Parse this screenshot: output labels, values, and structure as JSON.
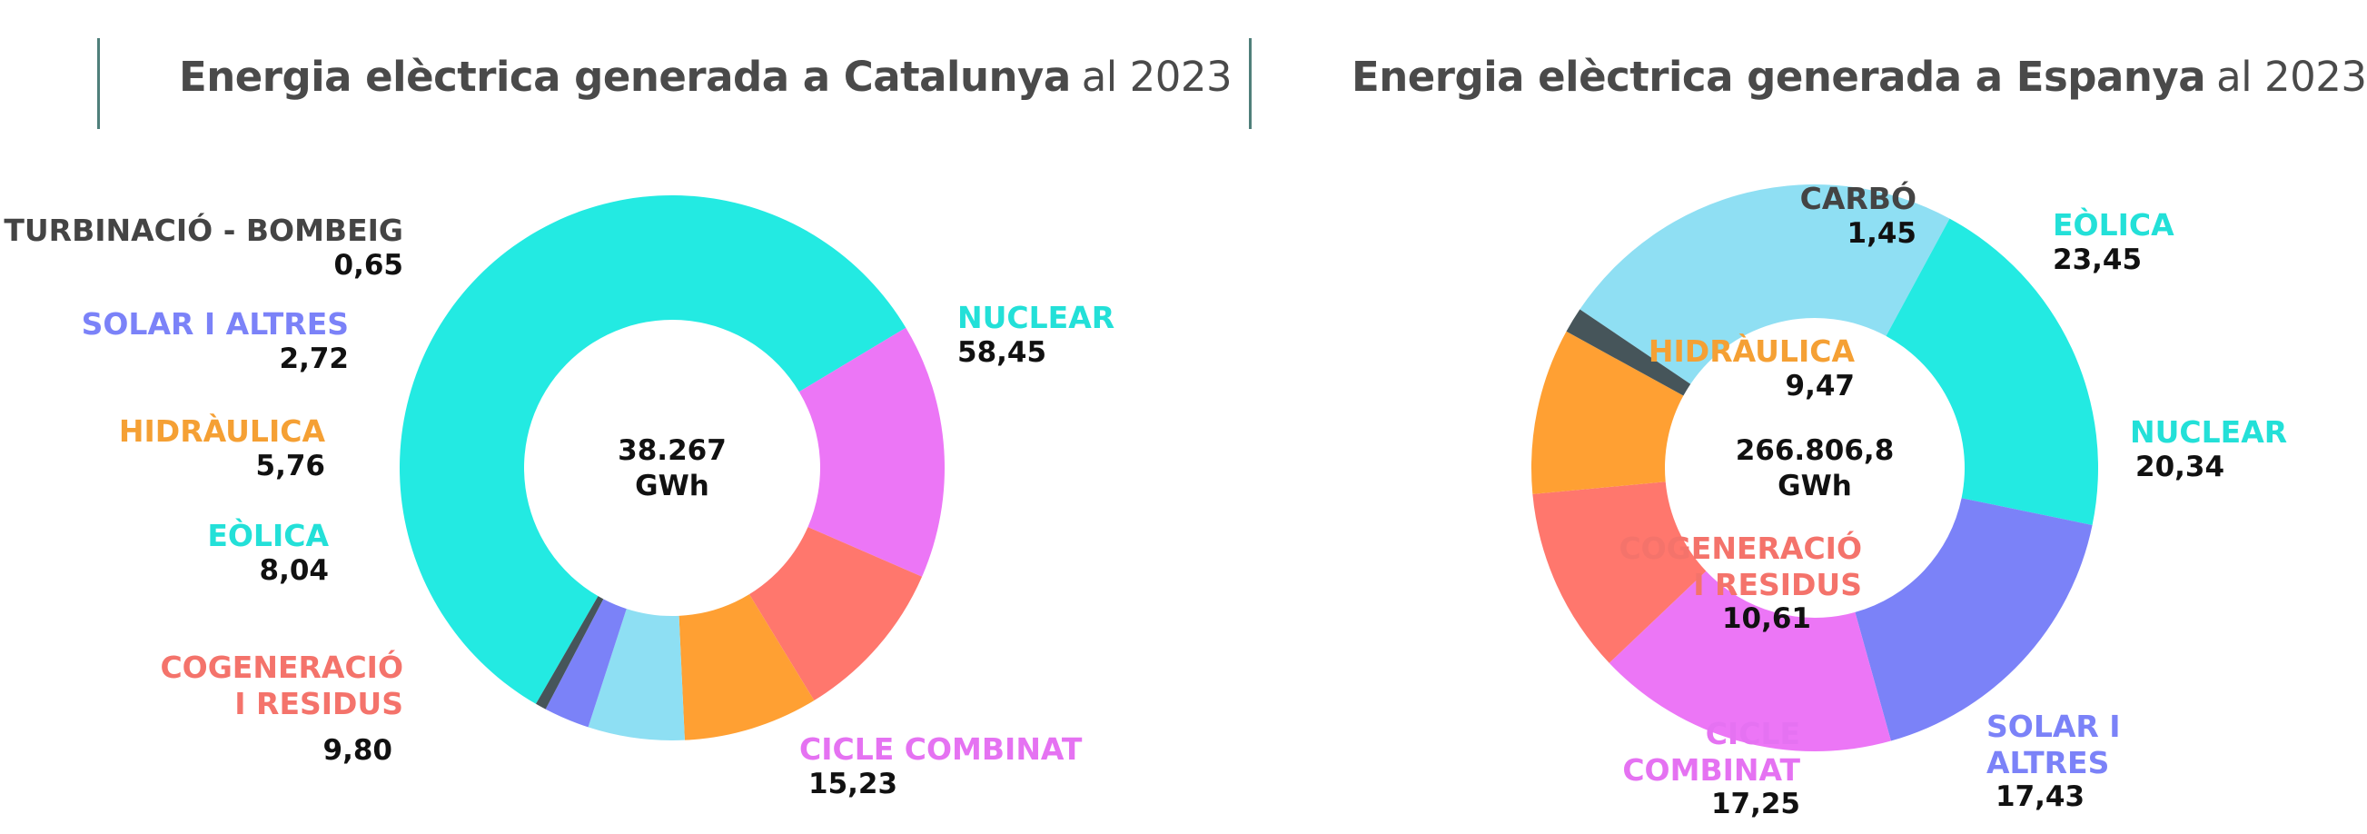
{
  "chart_data": [
    {
      "type": "donut",
      "title_bold": "Energia elèctrica generada a Catalunya",
      "title_rest": "al 2023",
      "center_value": "38.267",
      "center_unit": "GWh",
      "slices": [
        {
          "key": "nuclear",
          "label": "NUCLEAR",
          "value": 58.45,
          "display": "58,45",
          "color": "#23eae2"
        },
        {
          "key": "cicle",
          "label": "CICLE COMBINAT",
          "value": 15.23,
          "display": "15,23",
          "color": "#ec76f6"
        },
        {
          "key": "cogen",
          "label": "COGENERACIÓ I RESIDUS",
          "label_lines": [
            "COGENERACIÓ",
            "I RESIDUS"
          ],
          "value": 9.8,
          "display": "9,80",
          "color": "#ff776d"
        },
        {
          "key": "eolica",
          "label": "EÒLICA",
          "value": 8.04,
          "display": "8,04",
          "color": "#ffa033"
        },
        {
          "key": "hidraulica",
          "label": "HIDRÀULICA",
          "value": 5.76,
          "display": "5,76",
          "color": "#8edff3"
        },
        {
          "key": "solar",
          "label": "SOLAR I ALTRES",
          "value": 2.72,
          "display": "2,72",
          "color": "#7b82f8"
        },
        {
          "key": "turb",
          "label": "TURBINACIÓ - BOMBEIG",
          "value": 0.65,
          "display": "0,65",
          "color": "#46555a"
        }
      ],
      "label_colors": {
        "nuclear": "#23e0d8",
        "cicle": "#e572f2",
        "cogen": "#f4736b",
        "eolica": "#23e0d8",
        "hidraulica": "#f5a034",
        "solar": "#7b82f8",
        "turb": "#444444"
      }
    },
    {
      "type": "donut",
      "title_bold": "Energia elèctrica generada a Espanya",
      "title_rest": "al 2023",
      "center_value": "266.806,8",
      "center_unit": "GWh",
      "slices": [
        {
          "key": "eolica",
          "label": "EÒLICA",
          "value": 23.45,
          "display": "23,45",
          "color": "#8fdff3"
        },
        {
          "key": "nuclear",
          "label": "NUCLEAR",
          "value": 20.34,
          "display": "20,34",
          "color": "#23eae2"
        },
        {
          "key": "solar",
          "label": "SOLAR I ALTRES",
          "label_lines": [
            "SOLAR I",
            "ALTRES"
          ],
          "value": 17.43,
          "display": "17,43",
          "color": "#7b82f8"
        },
        {
          "key": "cicle",
          "label": "CICLE COMBINAT",
          "label_lines": [
            "CICLE",
            "COMBINAT"
          ],
          "value": 17.25,
          "display": "17,25",
          "color": "#ec76f6"
        },
        {
          "key": "cogen",
          "label": "COGENERACIÓ I RESIDUS",
          "label_lines": [
            "COGENERACIÓ",
            "I RESIDUS"
          ],
          "value": 10.61,
          "display": "10,61",
          "color": "#ff776d"
        },
        {
          "key": "hidraulica",
          "label": "HIDRÀULICA",
          "value": 9.47,
          "display": "9,47",
          "color": "#ffa033"
        },
        {
          "key": "carbo",
          "label": "CARBÓ",
          "value": 1.45,
          "display": "1,45",
          "color": "#46555a"
        }
      ],
      "label_colors": {
        "eolica": "#23e0d8",
        "nuclear": "#23e0d8",
        "solar": "#7b82f8",
        "cicle": "#e572f2",
        "cogen": "#f4736b",
        "hidraulica": "#f5a034",
        "carbo": "#444444"
      }
    }
  ]
}
